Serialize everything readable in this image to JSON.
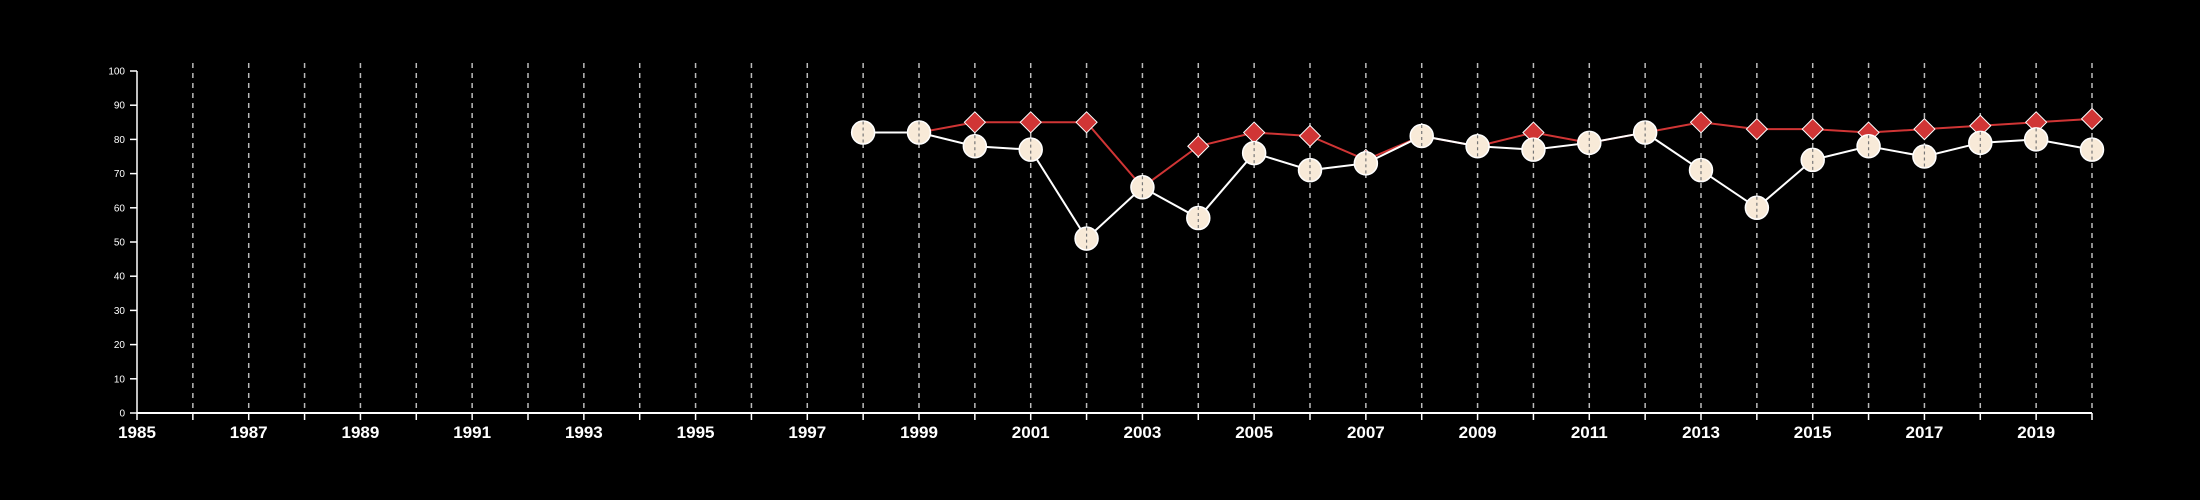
{
  "chart_data": {
    "type": "line",
    "title": "",
    "xlabel": "",
    "ylabel": "",
    "xlim": [
      1985,
      2020
    ],
    "ylim": [
      0,
      100
    ],
    "x_tick_labels": [
      "1985",
      "1987",
      "1989",
      "1991",
      "1993",
      "1995",
      "1997",
      "1999",
      "2001",
      "2003",
      "2005",
      "2007",
      "2009",
      "2011",
      "2013",
      "2015",
      "2017",
      "2019"
    ],
    "y_tick_labels": [
      "0",
      "10",
      "20",
      "30",
      "40",
      "50",
      "60",
      "70",
      "80",
      "90",
      "100"
    ],
    "grid": "vertical dashed lines at every year",
    "legend": "none",
    "x": [
      1998,
      1999,
      2000,
      2001,
      2002,
      2003,
      2004,
      2005,
      2006,
      2007,
      2008,
      2009,
      2010,
      2011,
      2012,
      2013,
      2014,
      2015,
      2016,
      2017,
      2018,
      2019,
      2020
    ],
    "series": [
      {
        "marker": "diamond",
        "color": "#d03535",
        "values": [
          82,
          82,
          85,
          85,
          85,
          66,
          78,
          82,
          81,
          74,
          81,
          78,
          82,
          79,
          82,
          85,
          83,
          83,
          82,
          83,
          84,
          85,
          86
        ]
      },
      {
        "marker": "circle",
        "color": "#f8ead8",
        "line_color": "#ffffff",
        "values": [
          82,
          82,
          78,
          77,
          51,
          66,
          57,
          76,
          71,
          73,
          81,
          78,
          77,
          79,
          82,
          71,
          60,
          74,
          78,
          75,
          79,
          80,
          77
        ]
      }
    ]
  }
}
